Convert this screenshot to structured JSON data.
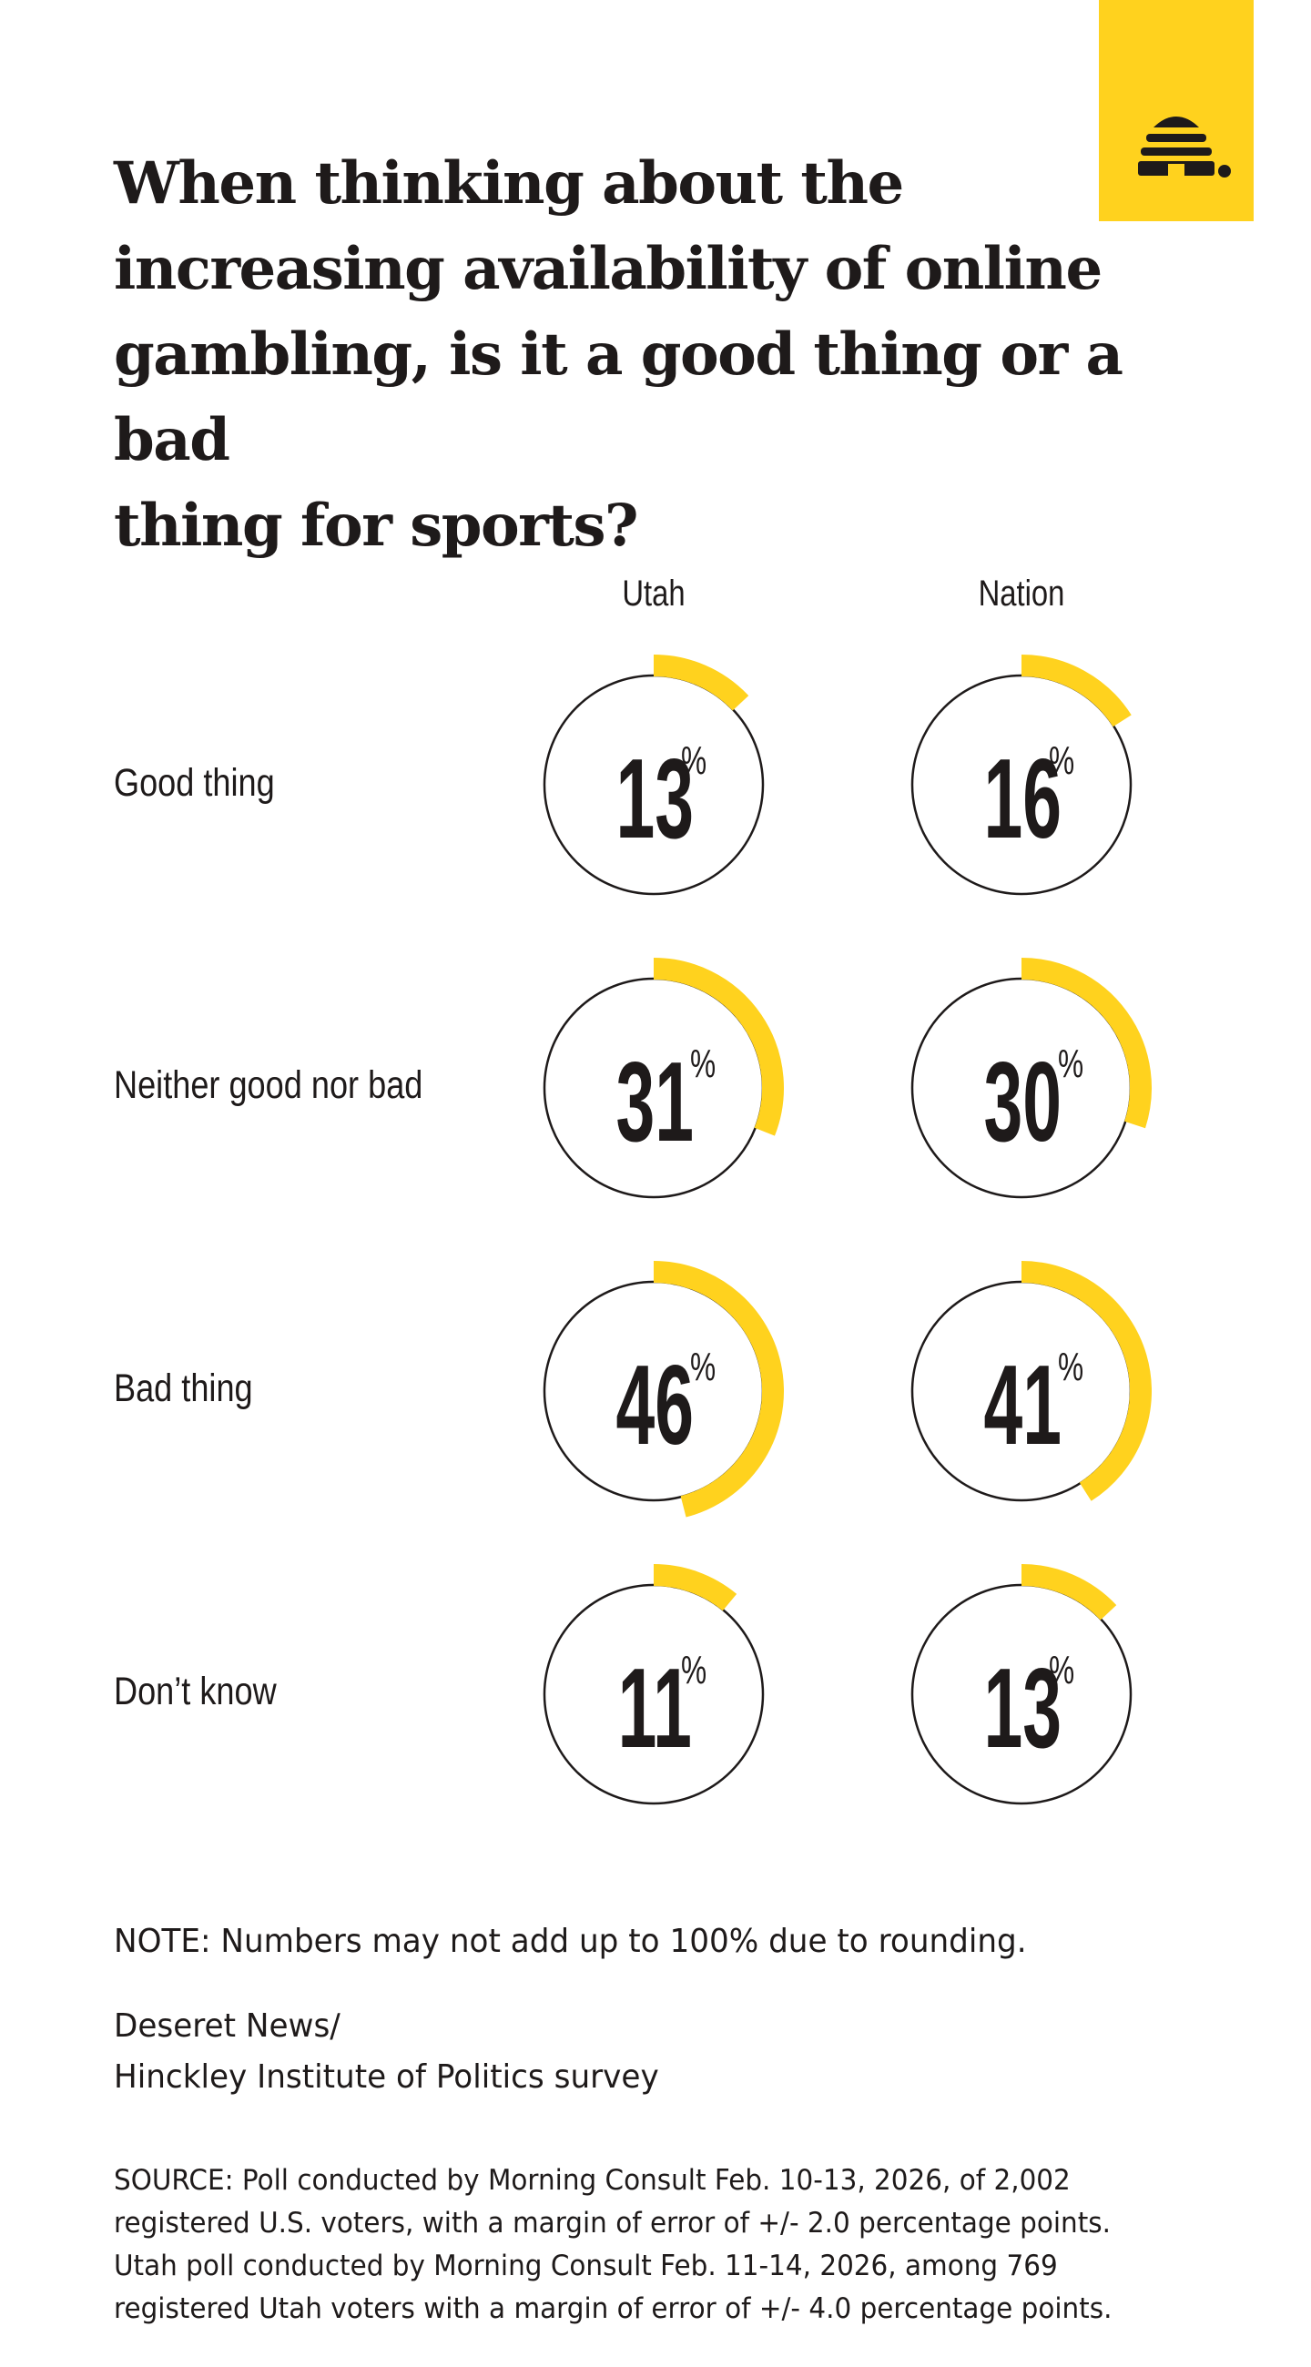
{
  "brand": {
    "logo_icon": "beehive-logo-icon",
    "accent": "#FFD21E",
    "ink": "#1E1A1A"
  },
  "title": "When thinking about the increasing availability of online gambling, is it a good thing or a bad thing for sports?",
  "title_lines": [
    "When thinking about the",
    "increasing availability of online",
    "gambling, is it a good thing or a bad",
    "thing for sports?"
  ],
  "chart_data": {
    "type": "donut",
    "columns": [
      "Utah",
      "Nation"
    ],
    "categories": [
      "Good thing",
      "Neither good nor bad",
      "Bad thing",
      "Don’t know"
    ],
    "series": [
      {
        "name": "Utah",
        "values": [
          13,
          31,
          46,
          11
        ]
      },
      {
        "name": "Nation",
        "values": [
          16,
          30,
          41,
          13
        ]
      }
    ],
    "unit": "%",
    "max": 100
  },
  "note": "NOTE: Numbers may not add up to 100% due to rounding.",
  "credit_lines": [
    "Deseret News/",
    "Hinckley Institute of Politics survey"
  ],
  "source_lines": [
    "SOURCE: Poll conducted by Morning Consult Feb. 10-13, 2026, of 2,002",
    "registered U.S. voters, with a margin of error of +/- 2.0 percentage points.",
    "Utah poll conducted by Morning Consult Feb. 11-14, 2026, among 769",
    "registered Utah voters with a margin of error of +/- 4.0 percentage points."
  ]
}
